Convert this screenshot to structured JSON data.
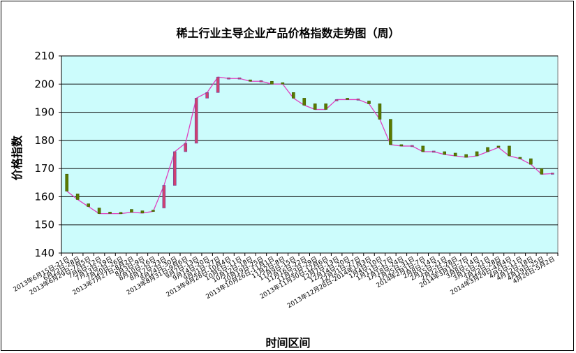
{
  "chart_data": {
    "type": "line",
    "title": "稀土行业主导企业产品价格指数走势图（周）",
    "xlabel": "时间区间",
    "ylabel": "价格指数",
    "ylim": [
      140,
      210
    ],
    "yticks": [
      140,
      150,
      160,
      170,
      180,
      190,
      200,
      210
    ],
    "grid": true,
    "legend": "none",
    "colors": {
      "plot_bg": "#ccfcfc",
      "line": "#e040c0",
      "up_candle": "#d04070",
      "down_candle": "#5a7a00",
      "grid": "#000000"
    },
    "categories": [
      "2013年6月15日-21日",
      "6月22日-28日",
      "2013年6月29日-7月5日",
      "7月6日-12日",
      "7月13日-19日",
      "7月20日-26日",
      "2013年7月27日-8月2日",
      "8月3日-9日",
      "8月10日-16日",
      "8月17日-23日",
      "8月24日-30日",
      "2013年8月31日-9月6日",
      "9月7日-13日",
      "9月14日-20日",
      "9月21日-27日",
      "2013年9月28日-10月4日",
      "10月5日-11日",
      "10月12日-18日",
      "10月19日-25日",
      "2013年10月26日-11月1日",
      "11月2日-8日",
      "11月9日-15日",
      "11月16日-22日",
      "11月23日-29日",
      "2013年11月30日-12月6日",
      "12月7日-13日",
      "12月14日-20日",
      "12月21日-27日",
      "2013年12月28日-2014年1月3日",
      "1月4日-10日",
      "1月11日-17日",
      "1月18日-24日",
      "1月25日-31日",
      "2014年2月1日-7日",
      "2月8日-14日",
      "2月15日-21日",
      "2月22日-28日",
      "2014年3月1日-7日",
      "3月8日-14日",
      "3月15日-21日",
      "3月22日-28日",
      "2014年3月29日-4月4日",
      "4月5日-11日",
      "4月12日-18日",
      "4月19日-25日",
      "4月26日-5月2日"
    ],
    "tick_labels": [
      "2013年6月15日-21日",
      "6月22日-28日",
      "2013年6月29日-7月5日",
      "7月6日-12日",
      "7月13日-19日",
      "7月20日-26日",
      "2013年7月27日-8月2日",
      "8月3日-9日",
      "8月10日-16日",
      "8月17日-23日",
      "8月24日-30日",
      "2013年8月31日-9月6日",
      "9月7日-13日",
      "9月14日-20日",
      "9月21日-27日",
      "2013年9月28日-10月4日",
      "10月5日-11日",
      "10月12日-18日",
      "10月19日-25日",
      "2013年10月26日-11月1日",
      "11月2日-8日",
      "11月9日-15日",
      "11月16日-22日",
      "11月23日-29日",
      "2013年11月30日-12月6日",
      "12月7日-13日",
      "12月14日-20日",
      "12月21日-27日",
      "2013年12月28日-2014年1月3日",
      "1月4日-10日",
      "1月11日-17日",
      "1月18日-24日",
      "1月25日-31日",
      "2014年2月1日-7日",
      "2月8日-14日",
      "2月15日-21日",
      "2月22日-28日",
      "2014年3月1日-7日",
      "3月8日-14日",
      "3月15日-21日",
      "3月22日-28日",
      "2014年3月29日-4月4日",
      "4月5日-11日",
      "4月12日-18日",
      "4月19日-25日",
      "4月26日-5月2日"
    ],
    "series": [
      {
        "values": [
          [
            168,
            162
          ],
          [
            161,
            159
          ],
          [
            157.5,
            156.5
          ],
          [
            156,
            154
          ],
          [
            154.3,
            154
          ],
          [
            154.2,
            154
          ],
          [
            155.5,
            154.5
          ],
          [
            155,
            154.2
          ],
          [
            155,
            154.8
          ],
          [
            156,
            164
          ],
          [
            164,
            176
          ],
          [
            176,
            179
          ],
          [
            179,
            195
          ],
          [
            195,
            197
          ],
          [
            197,
            202.5
          ],
          [
            202,
            202
          ],
          [
            202,
            202
          ],
          [
            201.5,
            201
          ],
          [
            201,
            201
          ],
          [
            201,
            200
          ],
          [
            200.5,
            200
          ],
          [
            197,
            195
          ],
          [
            195,
            192.5
          ],
          [
            193,
            191
          ],
          [
            193,
            191
          ],
          [
            194,
            194.5
          ],
          [
            195,
            194.5
          ],
          [
            194.5,
            194.5
          ],
          [
            194,
            193
          ],
          [
            193,
            187.5
          ],
          [
            187.5,
            178.5
          ],
          [
            178.5,
            178
          ],
          [
            178,
            178
          ],
          [
            178,
            176
          ],
          [
            176,
            176
          ],
          [
            176,
            175
          ],
          [
            175.5,
            174.5
          ],
          [
            175,
            174
          ],
          [
            176,
            174.5
          ],
          [
            177.5,
            176
          ],
          [
            178,
            177.5
          ],
          [
            178,
            174.5
          ],
          [
            174,
            173.5
          ],
          [
            173.5,
            171.5
          ],
          [
            170,
            168
          ],
          [
            168.2,
            168.2
          ]
        ]
      }
    ]
  }
}
